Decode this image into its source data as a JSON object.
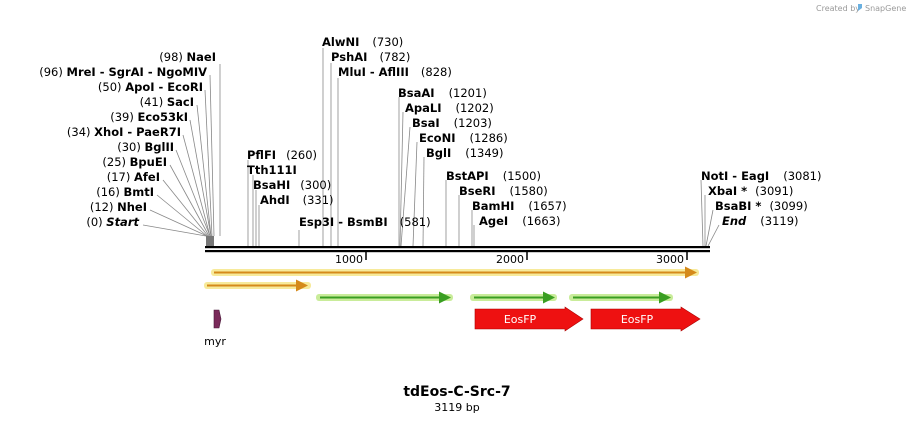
{
  "watermark": {
    "prefix": "Created by",
    "brand": "SnapGene"
  },
  "map": {
    "title": "tdEos-C-Src-7",
    "length_label": "3119 bp",
    "length": 3119,
    "ticks": [
      {
        "value": 1000,
        "label": "1000"
      },
      {
        "value": 2000,
        "label": "2000"
      },
      {
        "value": 3000,
        "label": "3000"
      }
    ]
  },
  "sites_left": [
    {
      "pos": "(98)",
      "text": "NaeI"
    },
    {
      "pos": "(96)",
      "text": "MreI  - SgrAI  - NgoMIV"
    },
    {
      "pos": "(50)",
      "text": "ApoI  - EcoRI"
    },
    {
      "pos": "(41)",
      "text": "SacI"
    },
    {
      "pos": "(39)",
      "text": "Eco53kI"
    },
    {
      "pos": "(34)",
      "text": "XhoI  - PaeR7I"
    },
    {
      "pos": "(30)",
      "text": "BglII"
    },
    {
      "pos": "(25)",
      "text": "BpuEI"
    },
    {
      "pos": "(17)",
      "text": "AfeI"
    },
    {
      "pos": "(16)",
      "text": "BmtI"
    },
    {
      "pos": "(12)",
      "text": "NheI"
    },
    {
      "pos": "(0)",
      "text": "Start"
    }
  ],
  "sites_mid_a": [
    {
      "text": "PflFI",
      "pos": "(260)"
    },
    {
      "text": "Tth111I",
      "pos": ""
    },
    {
      "text": "BsaHI",
      "pos": "(300)"
    },
    {
      "text": "AhdI",
      "pos": "(331)"
    }
  ],
  "sites_mid_b": [
    {
      "text": "AlwNI",
      "pos": "(730)"
    },
    {
      "text": "PshAI",
      "pos": "(782)"
    },
    {
      "text": "MluI  - AflIII",
      "pos": "(828)"
    }
  ],
  "site_esp": {
    "text": "Esp3I  - BsmBI",
    "pos": "(581)"
  },
  "sites_mid_c": [
    {
      "text": "BsaAI",
      "pos": "(1201)"
    },
    {
      "text": "ApaLI",
      "pos": "(1202)"
    },
    {
      "text": "BsaI",
      "pos": "(1203)"
    },
    {
      "text": "EcoNI",
      "pos": "(1286)"
    },
    {
      "text": "BglI",
      "pos": "(1349)"
    }
  ],
  "sites_mid_d": [
    {
      "text": "BstAPI",
      "pos": "(1500)"
    },
    {
      "text": "BseRI",
      "pos": "(1580)"
    },
    {
      "text": "BamHI",
      "pos": "(1657)"
    },
    {
      "text": "AgeI",
      "pos": "(1663)"
    }
  ],
  "sites_right": [
    {
      "text": "NotI  - EagI",
      "pos": "(3081)"
    },
    {
      "text": "XbaI *",
      "pos": "(3091)"
    },
    {
      "text": "BsaBI *",
      "pos": "(3099)"
    },
    {
      "text": "End",
      "pos": "(3119)"
    }
  ],
  "features": [
    {
      "name": "EosFP",
      "color": "#ee1111"
    },
    {
      "name": "EosFP",
      "color": "#ee1111"
    },
    {
      "name": "myr",
      "color": "#7a2a5a"
    }
  ],
  "colors": {
    "orange_arrow": "#d58a1a",
    "orange_glow": "#f7ea9a",
    "green_arrow": "#3a9e22",
    "green_glow": "#c9ec9a",
    "backbone": "#000000"
  }
}
